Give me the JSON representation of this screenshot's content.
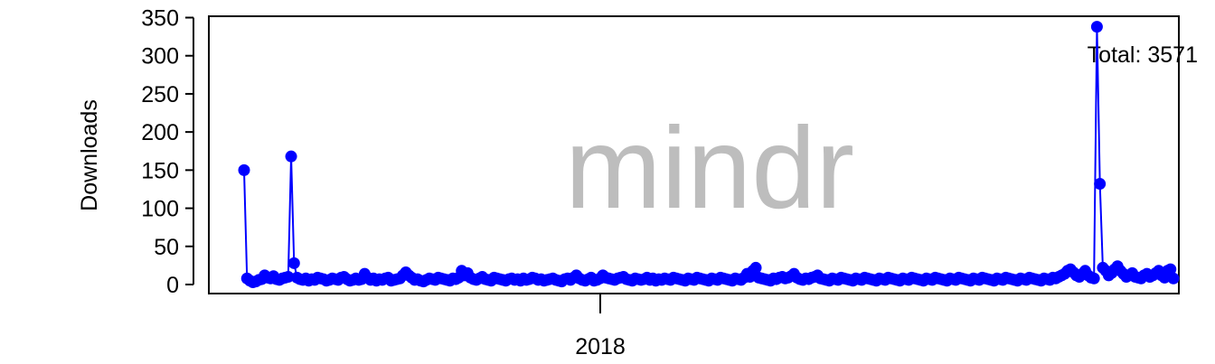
{
  "chart_data": {
    "type": "line",
    "watermark": "mindr",
    "annotation": "Total: 3571",
    "xlabel": "",
    "ylabel": "Downloads",
    "x_tick_labels": [
      "2018"
    ],
    "y_ticks": [
      0,
      50,
      100,
      150,
      200,
      250,
      300,
      350
    ],
    "ylim": [
      0,
      350
    ],
    "grid": false,
    "legend": "none",
    "color": "#0000ff",
    "series": [
      {
        "values": [
          150,
          8,
          5,
          3,
          4,
          6,
          7,
          12,
          9,
          8,
          11,
          7,
          6,
          8,
          9,
          10,
          168,
          28,
          9,
          7,
          6,
          8,
          5,
          7,
          6,
          9,
          8,
          7,
          5,
          6,
          8,
          7,
          6,
          9,
          10,
          7,
          5,
          6,
          8,
          6,
          7,
          14,
          9,
          6,
          8,
          5,
          7,
          6,
          8,
          9,
          5,
          6,
          7,
          8,
          12,
          16,
          12,
          9,
          6,
          7,
          5,
          4,
          6,
          8,
          7,
          6,
          9,
          8,
          7,
          6,
          5,
          8,
          7,
          9,
          18,
          12,
          15,
          9,
          7,
          6,
          8,
          10,
          7,
          6,
          5,
          9,
          8,
          7,
          6,
          5,
          7,
          8,
          6,
          7,
          5,
          8,
          6,
          7,
          9,
          8,
          6,
          7,
          5,
          6,
          7,
          8,
          6,
          5,
          4,
          7,
          8,
          6,
          9,
          12,
          8,
          6,
          5,
          7,
          9,
          5,
          6,
          8,
          12,
          9,
          8,
          7,
          6,
          8,
          9,
          10,
          7,
          6,
          5,
          8,
          7,
          6,
          7,
          9,
          6,
          8,
          5,
          7,
          6,
          8,
          7,
          6,
          9,
          8,
          7,
          6,
          5,
          8,
          7,
          6,
          9,
          8,
          7,
          6,
          5,
          8,
          7,
          6,
          9,
          8,
          7,
          6,
          5,
          8,
          7,
          6,
          9,
          14,
          10,
          18,
          22,
          9,
          8,
          7,
          6,
          5,
          8,
          7,
          9,
          10,
          8,
          9,
          11,
          14,
          9,
          7,
          6,
          8,
          7,
          9,
          10,
          12,
          8,
          7,
          6,
          5,
          8,
          7,
          6,
          9,
          8,
          7,
          6,
          5,
          8,
          7,
          6,
          9,
          8,
          7,
          6,
          5,
          8,
          7,
          6,
          9,
          8,
          7,
          6,
          5,
          8,
          7,
          6,
          9,
          8,
          7,
          6,
          5,
          8,
          7,
          6,
          9,
          8,
          7,
          6,
          5,
          8,
          7,
          6,
          9,
          8,
          7,
          6,
          5,
          8,
          7,
          6,
          9,
          8,
          7,
          6,
          5,
          8,
          7,
          6,
          9,
          8,
          7,
          6,
          5,
          8,
          7,
          6,
          9,
          8,
          7,
          6,
          5,
          8,
          7,
          6,
          9,
          8,
          10,
          12,
          14,
          18,
          20,
          16,
          12,
          10,
          14,
          18,
          12,
          9,
          8,
          338,
          132,
          22,
          18,
          12,
          15,
          20,
          24,
          18,
          14,
          10,
          12,
          15,
          10,
          9,
          8,
          12,
          14,
          10,
          12,
          15,
          18,
          12,
          9,
          18,
          20,
          8
        ]
      }
    ]
  }
}
